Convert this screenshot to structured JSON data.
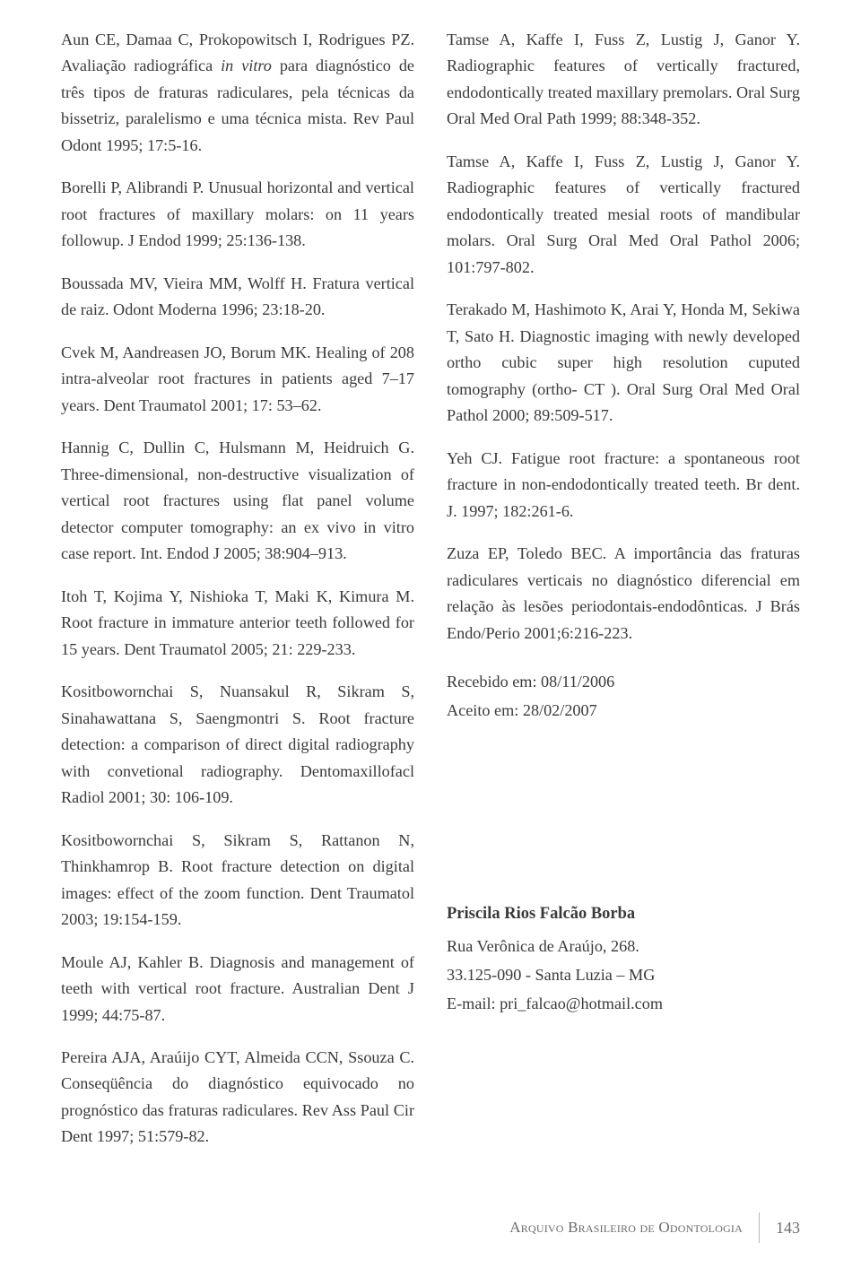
{
  "left_refs": [
    {
      "html": "Aun CE, Damaa C, Prokopowitsch I, Rodrigues PZ. Avaliação radiográfica <em>in vitro</em> para diagnóstico de três tipos de fraturas radiculares, pela técnicas da bissetriz, paralelismo e uma técnica mista. Rev Paul Odont 1995; 17:5-16."
    },
    {
      "html": "Borelli P, Alibrandi P. Unusual horizontal and vertical root fractures of maxillary molars: on 11 years followup. J Endod 1999; 25:136-138."
    },
    {
      "html": "Boussada MV, Vieira MM, Wolff H. Fratura vertical de raiz. Odont Moderna 1996; 23:18-20."
    },
    {
      "html": "Cvek M, Aandreasen JO, Borum MK. Healing of 208 intra-alveolar root fractures in patients aged 7–17 years. Dent Traumatol 2001; 17: 53–62."
    },
    {
      "html": "Hannig C, Dullin C, Hulsmann M, Heidruich G. Three-dimensional, non-destructive visualization of vertical root fractures using flat panel volume detector computer tomography: an ex vivo in vitro case report. Int. Endod J 2005; 38:904–913."
    },
    {
      "html": "Itoh T, Kojima Y, Nishioka T, Maki K, Kimura M. Root fracture in immature anterior teeth followed for 15 years. Dent Traumatol 2005; 21: 229-233."
    },
    {
      "html": "Kositbowornchai S, Nuansakul R, Sikram S, Sinahawattana S, Saengmontri S. Root fracture detection: a comparison of direct digital radiography with convetional radiography. Dentomaxillofacl Radiol 2001; 30: 106-109."
    },
    {
      "html": "Kositbowornchai S, Sikram S, Rattanon N, Thinkhamrop B. Root fracture detection on digital images: effect of the zoom function. Dent Traumatol 2003; 19:154-159."
    },
    {
      "html": "Moule AJ, Kahler B. Diagnosis and management of teeth with vertical root fracture. Australian Dent J 1999; 44:75-87."
    },
    {
      "html": "Pereira AJA, Araúijo CYT, Almeida CCN, Ssouza C. Conseqüência do diagnóstico equivocado no prognóstico das fraturas radiculares. Rev Ass Paul Cir Dent 1997; 51:579-82."
    }
  ],
  "right_refs": [
    {
      "html": "Tamse A, Kaffe I, Fuss Z, Lustig J, Ganor Y. Radiographic features of vertically fractured, endodontically treated maxillary premolars. Oral Surg Oral Med Oral Path 1999; 88:348-352."
    },
    {
      "html": "Tamse A, Kaffe I, Fuss Z, Lustig J, Ganor Y. Radiographic features of vertically fractured endodontically treated mesial roots of mandibular molars. Oral Surg Oral Med Oral Pathol 2006; 101:797-802."
    },
    {
      "html": "Terakado M, Hashimoto K, Arai Y, Honda M, Sekiwa T, Sato H. Diagnostic imaging with newly developed ortho cubic super high resolution cuputed tomography (ortho- CT ). Oral Surg Oral Med Oral Pathol 2000; 89:509-517."
    },
    {
      "html": "Yeh CJ. Fatigue root fracture: a spontaneous root fracture in non-endodontically treated teeth. Br dent. J. 1997; 182:261-6."
    },
    {
      "html": "Zuza EP, Toledo BEC. A importância das fraturas radiculares verticais no diagnóstico diferencial em relação às lesões periodontais-endodônticas. J Brás Endo/Perio 2001;6:216-223."
    }
  ],
  "meta": {
    "received": "Recebido em: 08/11/2006",
    "accepted": "Aceito em: 28/02/2007"
  },
  "author": {
    "name": "Priscila Rios Falcão Borba",
    "line1": "Rua Verônica de Araújo, 268.",
    "line2": "33.125-090 - Santa Luzia – MG",
    "line3": "E-mail: pri_falcao@hotmail.com"
  },
  "footer": {
    "journal_html": "A<span class='sc'>rquivo</span> B<span class='sc'>rasileiro de</span> O<span class='sc'>dontologia</span>",
    "page": "143"
  }
}
